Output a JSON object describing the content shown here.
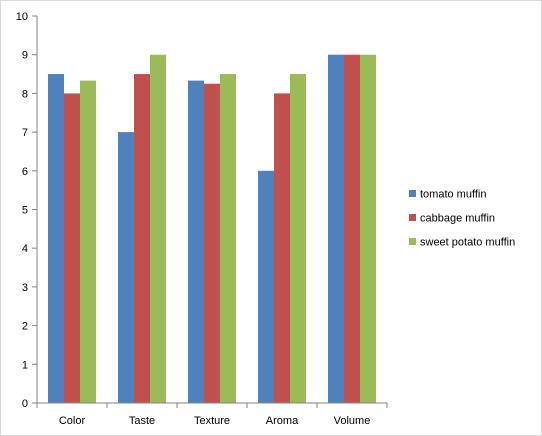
{
  "chart_data": {
    "type": "bar",
    "title": "",
    "xlabel": "",
    "ylabel": "",
    "categories": [
      "Color",
      "Taste",
      "Texture",
      "Aroma",
      "Volume"
    ],
    "series": [
      {
        "name": "tomato muffin",
        "color": "#4f81bd",
        "values": [
          8.5,
          7.0,
          8.33,
          6.0,
          9.0
        ]
      },
      {
        "name": "cabbage muffin",
        "color": "#c0504d",
        "values": [
          8.0,
          8.5,
          8.25,
          8.0,
          9.0
        ]
      },
      {
        "name": "sweet potato muffin",
        "color": "#9bbb59",
        "values": [
          8.33,
          9.0,
          8.5,
          8.5,
          9.0
        ]
      }
    ],
    "ylim": [
      0,
      10
    ],
    "yticks": [
      "0",
      "1",
      "2",
      "3",
      "4",
      "5",
      "6",
      "7",
      "8",
      "9",
      "10"
    ],
    "grid": false,
    "legend_position": "right"
  }
}
